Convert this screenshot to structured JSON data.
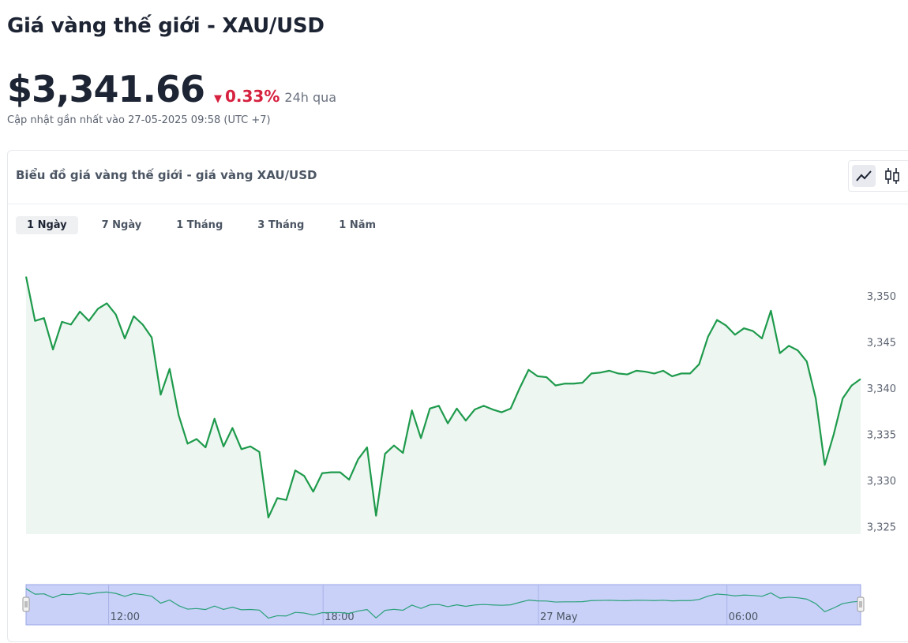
{
  "header": {
    "title": "Giá vàng thế giới - XAU/USD",
    "price": "$3,341.66",
    "change": "0.33%",
    "change_period": "24h qua",
    "updated": "Cập nhật gần nhất vào 27-05-2025 09:58 (UTC +7)"
  },
  "card": {
    "title": "Biểu đồ giá vàng thế giới - giá vàng XAU/USD",
    "tabs": [
      "1 Ngày",
      "7 Ngày",
      "1 Tháng",
      "3 Tháng",
      "1 Năm"
    ],
    "active_tab": 0
  },
  "chart_data": {
    "type": "area",
    "color": "#1e9a4c",
    "fill": "#edf6f0",
    "values": [
      3352.1,
      3347.3,
      3347.6,
      3344.2,
      3347.2,
      3346.9,
      3348.3,
      3347.3,
      3348.6,
      3349.2,
      3348.0,
      3345.4,
      3347.8,
      3346.9,
      3345.5,
      3339.3,
      3342.1,
      3337.1,
      3334.0,
      3334.5,
      3333.6,
      3336.7,
      3333.7,
      3335.7,
      3333.4,
      3333.7,
      3333.1,
      3326.0,
      3328.1,
      3327.9,
      3331.1,
      3330.5,
      3328.8,
      3330.8,
      3330.9,
      3330.9,
      3330.1,
      3332.3,
      3333.6,
      3326.2,
      3332.9,
      3333.8,
      3333.0,
      3337.6,
      3334.6,
      3337.8,
      3338.1,
      3336.2,
      3337.8,
      3336.5,
      3337.7,
      3338.1,
      3337.7,
      3337.4,
      3337.8,
      3340.0,
      3342.0,
      3341.3,
      3341.2,
      3340.3,
      3340.5,
      3340.5,
      3340.6,
      3341.6,
      3341.7,
      3341.9,
      3341.6,
      3341.5,
      3341.9,
      3341.8,
      3341.6,
      3341.9,
      3341.3,
      3341.6,
      3341.6,
      3342.6,
      3345.6,
      3347.4,
      3346.8,
      3345.8,
      3346.5,
      3346.2,
      3345.4,
      3348.4,
      3343.8,
      3344.6,
      3344.1,
      3342.9,
      3338.9,
      3331.7,
      3335.0,
      3338.9,
      3340.3,
      3341.0
    ],
    "xlim": [
      0,
      93
    ],
    "xticks": [
      {
        "value": 9.2,
        "label": "12:00"
      },
      {
        "value": 33.1,
        "label": "18:00"
      },
      {
        "value": 57.1,
        "label": "27 May"
      },
      {
        "value": 78.1,
        "label": "06:00"
      }
    ],
    "ylim": [
      3324.2,
      3353
    ],
    "yticks": [
      {
        "value": 3325,
        "label": "3,325"
      },
      {
        "value": 3330,
        "label": "3,330"
      },
      {
        "value": 3335,
        "label": "3,335"
      },
      {
        "value": 3340,
        "label": "3,340"
      },
      {
        "value": 3345,
        "label": "3,345"
      },
      {
        "value": 3350,
        "label": "3,350"
      }
    ],
    "navigator": {
      "color": "#2aa07a",
      "fill": "#c9d1f8"
    }
  }
}
